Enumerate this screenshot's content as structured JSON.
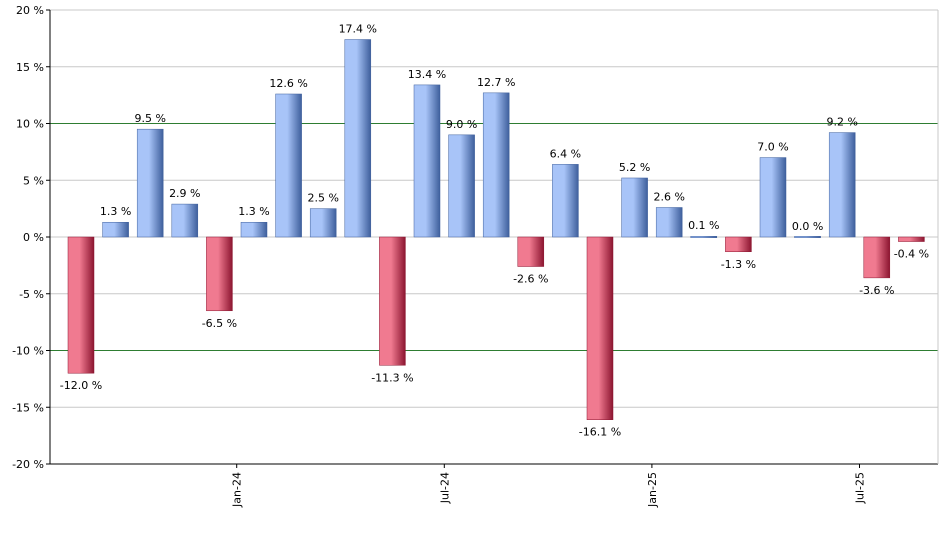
{
  "chart_data": {
    "type": "bar",
    "title": "",
    "xlabel": "",
    "ylabel": "",
    "ylim": [
      -20,
      20
    ],
    "y_ticks": [
      {
        "value": 20,
        "label": "20 %"
      },
      {
        "value": 15,
        "label": "15 %"
      },
      {
        "value": 10,
        "label": "10 %"
      },
      {
        "value": 5,
        "label": "5 %"
      },
      {
        "value": 0,
        "label": "0 %"
      },
      {
        "value": -5,
        "label": "-5 %"
      },
      {
        "value": -10,
        "label": "-10 %"
      },
      {
        "value": -15,
        "label": "-15 %"
      },
      {
        "value": -20,
        "label": "-20 %"
      }
    ],
    "x_tick_labels": [
      {
        "label": "Jan-24",
        "after_bar": 4
      },
      {
        "label": "Jul-24",
        "after_bar": 10
      },
      {
        "label": "Jan-25",
        "after_bar": 16
      },
      {
        "label": "Jul-25",
        "after_bar": 22
      }
    ],
    "reference_lines": [
      10,
      -10
    ],
    "values": [
      -12.0,
      1.3,
      9.5,
      2.9,
      -6.5,
      1.3,
      12.6,
      2.5,
      17.4,
      -11.3,
      13.4,
      9.0,
      12.7,
      -2.6,
      6.4,
      -16.1,
      5.2,
      2.6,
      0.1,
      -1.3,
      7.0,
      0.0,
      9.2,
      -3.6,
      -0.4
    ],
    "value_labels": [
      "-12.0 %",
      "1.3 %",
      "9.5 %",
      "2.9 %",
      "-6.5 %",
      "1.3 %",
      "12.6 %",
      "2.5 %",
      "17.4 %",
      "-11.3 %",
      "13.4 %",
      "9.0 %",
      "12.7 %",
      "-2.6 %",
      "6.4 %",
      "-16.1 %",
      "5.2 %",
      "2.6 %",
      "0.1 %",
      "-1.3 %",
      "7.0 %",
      "0.0 %",
      "9.2 %",
      "-3.6 %",
      "-0.4 %"
    ],
    "colors": {
      "positive_light": "#a8c4f8",
      "positive_dark": "#3e5f9c",
      "negative_light": "#f07a90",
      "negative_dark": "#8c1530",
      "reference_line": "#2e7d32",
      "grid": "#c8c8c8"
    }
  }
}
